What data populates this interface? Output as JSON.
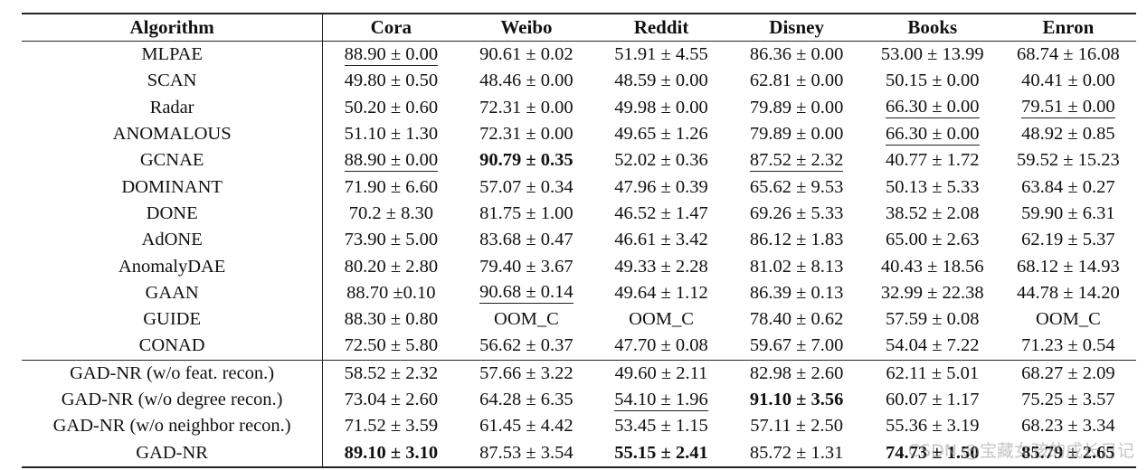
{
  "table": {
    "headers": [
      "Algorithm",
      "Cora",
      "Weibo",
      "Reddit",
      "Disney",
      "Books",
      "Enron"
    ],
    "rows": [
      {
        "algorithm": "MLPAE",
        "cells": [
          {
            "v": "88.90 ± 0.00",
            "s": "underline"
          },
          {
            "v": "90.61 ± 0.02",
            "s": ""
          },
          {
            "v": "51.91 ± 4.55",
            "s": ""
          },
          {
            "v": "86.36 ± 0.00",
            "s": ""
          },
          {
            "v": "53.00 ± 13.99",
            "s": ""
          },
          {
            "v": "68.74 ± 16.08",
            "s": ""
          }
        ]
      },
      {
        "algorithm": "SCAN",
        "cells": [
          {
            "v": "49.80 ± 0.50",
            "s": ""
          },
          {
            "v": "48.46 ± 0.00",
            "s": ""
          },
          {
            "v": "48.59 ± 0.00",
            "s": ""
          },
          {
            "v": "62.81 ± 0.00",
            "s": ""
          },
          {
            "v": "50.15 ± 0.00",
            "s": ""
          },
          {
            "v": "40.41 ± 0.00",
            "s": ""
          }
        ]
      },
      {
        "algorithm": "Radar",
        "cells": [
          {
            "v": "50.20 ± 0.60",
            "s": ""
          },
          {
            "v": "72.31 ± 0.00",
            "s": ""
          },
          {
            "v": "49.98 ± 0.00",
            "s": ""
          },
          {
            "v": "79.89 ± 0.00",
            "s": ""
          },
          {
            "v": "66.30 ± 0.00",
            "s": "underline"
          },
          {
            "v": "79.51 ± 0.00",
            "s": "underline"
          }
        ]
      },
      {
        "algorithm": "ANOMALOUS",
        "cells": [
          {
            "v": "51.10 ± 1.30",
            "s": ""
          },
          {
            "v": "72.31 ± 0.00",
            "s": ""
          },
          {
            "v": "49.65 ± 1.26",
            "s": ""
          },
          {
            "v": "79.89 ± 0.00",
            "s": ""
          },
          {
            "v": "66.30 ± 0.00",
            "s": "underline"
          },
          {
            "v": "48.92 ± 0.85",
            "s": ""
          }
        ]
      },
      {
        "algorithm": "GCNAE",
        "cells": [
          {
            "v": "88.90 ± 0.00",
            "s": "underline"
          },
          {
            "v": "90.79 ± 0.35",
            "s": "bold"
          },
          {
            "v": "52.02 ± 0.36",
            "s": ""
          },
          {
            "v": "87.52 ± 2.32",
            "s": "underline"
          },
          {
            "v": "40.77 ± 1.72",
            "s": ""
          },
          {
            "v": "59.52 ± 15.23",
            "s": ""
          }
        ]
      },
      {
        "algorithm": "DOMINANT",
        "cells": [
          {
            "v": "71.90 ± 6.60",
            "s": ""
          },
          {
            "v": "57.07 ± 0.34",
            "s": ""
          },
          {
            "v": "47.96 ± 0.39",
            "s": ""
          },
          {
            "v": "65.62 ± 9.53",
            "s": ""
          },
          {
            "v": "50.13 ± 5.33",
            "s": ""
          },
          {
            "v": "63.84 ± 0.27",
            "s": ""
          }
        ]
      },
      {
        "algorithm": "DONE",
        "cells": [
          {
            "v": "70.2 ± 8.30",
            "s": ""
          },
          {
            "v": "81.75 ± 1.00",
            "s": ""
          },
          {
            "v": "46.52 ± 1.47",
            "s": ""
          },
          {
            "v": "69.26 ± 5.33",
            "s": ""
          },
          {
            "v": "38.52 ± 2.08",
            "s": ""
          },
          {
            "v": "59.90 ± 6.31",
            "s": ""
          }
        ]
      },
      {
        "algorithm": "AdONE",
        "cells": [
          {
            "v": "73.90 ± 5.00",
            "s": ""
          },
          {
            "v": "83.68 ± 0.47",
            "s": ""
          },
          {
            "v": "46.61 ± 3.42",
            "s": ""
          },
          {
            "v": "86.12 ± 1.83",
            "s": ""
          },
          {
            "v": "65.00 ± 2.63",
            "s": ""
          },
          {
            "v": "62.19 ± 5.37",
            "s": ""
          }
        ]
      },
      {
        "algorithm": "AnomalyDAE",
        "cells": [
          {
            "v": "80.20 ± 2.80",
            "s": ""
          },
          {
            "v": "79.40 ± 3.67",
            "s": ""
          },
          {
            "v": "49.33 ± 2.28",
            "s": ""
          },
          {
            "v": "81.02 ± 8.13",
            "s": ""
          },
          {
            "v": "40.43 ± 18.56",
            "s": ""
          },
          {
            "v": "68.12 ± 14.93",
            "s": ""
          }
        ]
      },
      {
        "algorithm": "GAAN",
        "cells": [
          {
            "v": "88.70 ±0.10",
            "s": ""
          },
          {
            "v": "90.68 ± 0.14",
            "s": "underline"
          },
          {
            "v": "49.64 ± 1.12",
            "s": ""
          },
          {
            "v": "86.39 ± 0.13",
            "s": ""
          },
          {
            "v": "32.99 ± 22.38",
            "s": ""
          },
          {
            "v": "44.78 ± 14.20",
            "s": ""
          }
        ]
      },
      {
        "algorithm": "GUIDE",
        "cells": [
          {
            "v": "88.30 ± 0.80",
            "s": ""
          },
          {
            "v": "OOM_C",
            "s": ""
          },
          {
            "v": "OOM_C",
            "s": ""
          },
          {
            "v": "78.40 ± 0.62",
            "s": ""
          },
          {
            "v": "57.59 ± 0.08",
            "s": ""
          },
          {
            "v": "OOM_C",
            "s": ""
          }
        ]
      },
      {
        "algorithm": "CONAD",
        "cells": [
          {
            "v": "72.50 ± 5.80",
            "s": ""
          },
          {
            "v": "56.62 ± 0.37",
            "s": ""
          },
          {
            "v": "47.70 ± 0.08",
            "s": ""
          },
          {
            "v": "59.67 ± 7.00",
            "s": ""
          },
          {
            "v": "54.04 ± 7.22",
            "s": ""
          },
          {
            "v": "71.23 ± 0.54",
            "s": ""
          }
        ]
      },
      {
        "algorithm": "GAD-NR (w/o feat. recon.)",
        "group_start": true,
        "cells": [
          {
            "v": "58.52 ± 2.32",
            "s": ""
          },
          {
            "v": "57.66 ± 3.22",
            "s": ""
          },
          {
            "v": "49.60 ± 2.11",
            "s": ""
          },
          {
            "v": "82.98 ± 2.60",
            "s": ""
          },
          {
            "v": "62.11 ± 5.01",
            "s": ""
          },
          {
            "v": "68.27 ± 2.09",
            "s": ""
          }
        ]
      },
      {
        "algorithm": "GAD-NR (w/o degree recon.)",
        "cells": [
          {
            "v": "73.04 ± 2.60",
            "s": ""
          },
          {
            "v": "64.28 ± 6.35",
            "s": ""
          },
          {
            "v": "54.10 ± 1.96",
            "s": "underline"
          },
          {
            "v": "91.10 ± 3.56",
            "s": "bold"
          },
          {
            "v": "60.07 ± 1.17",
            "s": ""
          },
          {
            "v": "75.25 ± 3.57",
            "s": ""
          }
        ]
      },
      {
        "algorithm": "GAD-NR (w/o neighbor recon.)",
        "cells": [
          {
            "v": "71.52 ± 3.59",
            "s": ""
          },
          {
            "v": "61.45 ± 4.42",
            "s": ""
          },
          {
            "v": "53.45 ± 1.15",
            "s": ""
          },
          {
            "v": "57.11 ± 2.50",
            "s": ""
          },
          {
            "v": "55.36 ± 3.19",
            "s": ""
          },
          {
            "v": "68.23 ± 3.34",
            "s": ""
          }
        ]
      },
      {
        "algorithm": "GAD-NR",
        "last": true,
        "cells": [
          {
            "v": "89.10 ± 3.10",
            "s": "bold"
          },
          {
            "v": "87.53 ± 3.54",
            "s": ""
          },
          {
            "v": "55.15 ± 2.41",
            "s": "bold"
          },
          {
            "v": "85.72 ± 1.31",
            "s": ""
          },
          {
            "v": "74.73 ± 1.50",
            "s": "bold"
          },
          {
            "v": "85.79 ± 2.65",
            "s": "bold"
          }
        ]
      }
    ]
  },
  "watermark": "CSDN @宝藏女孩的成长日记"
}
